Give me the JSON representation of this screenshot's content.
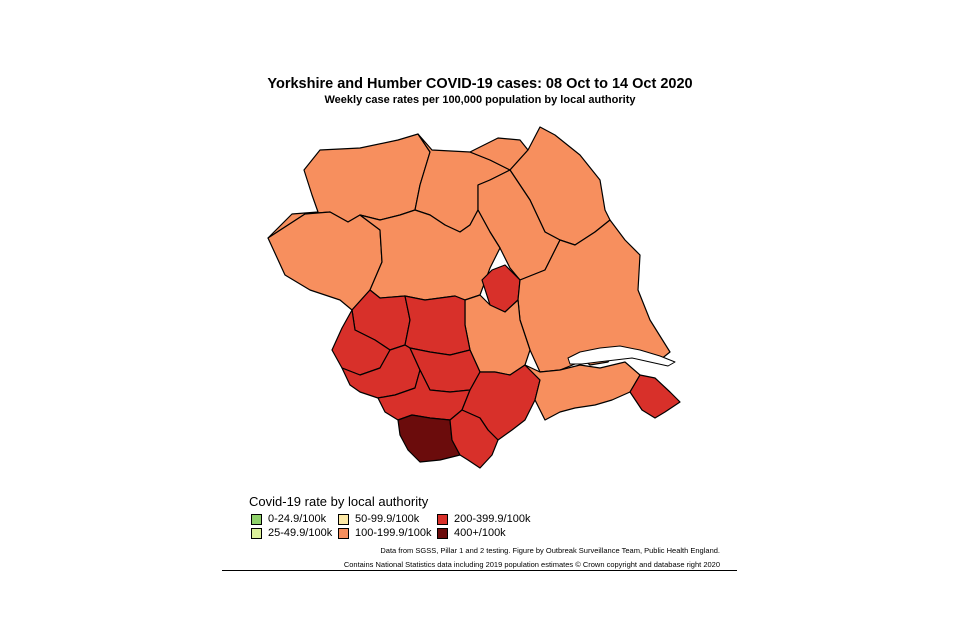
{
  "title": "Yorkshire and Humber COVID-19 cases: 08 Oct to 14 Oct 2020",
  "subtitle": "Weekly case rates per 100,000 population by local authority",
  "colors": {
    "band_100_199": "#f78f5e",
    "band_200_399": "#d8302a",
    "band_400_plus": "#6b0c0c",
    "estuary": "#ffffff",
    "border": "#000000"
  },
  "map": {
    "regions": [
      {
        "id": "richmondshire",
        "band": "100-199.9/100k"
      },
      {
        "id": "hambleton",
        "band": "100-199.9/100k"
      },
      {
        "id": "redcar-and-cleveland-adjacent",
        "band": "100-199.9/100k"
      },
      {
        "id": "scarborough",
        "band": "100-199.9/100k"
      },
      {
        "id": "ryedale",
        "band": "100-199.9/100k"
      },
      {
        "id": "craven",
        "band": "100-199.9/100k"
      },
      {
        "id": "harrogate",
        "band": "100-199.9/100k"
      },
      {
        "id": "york",
        "band": "200-399.9/100k"
      },
      {
        "id": "east-riding",
        "band": "100-199.9/100k"
      },
      {
        "id": "selby",
        "band": "100-199.9/100k"
      },
      {
        "id": "bradford",
        "band": "200-399.9/100k"
      },
      {
        "id": "leeds",
        "band": "200-399.9/100k"
      },
      {
        "id": "calderdale",
        "band": "200-399.9/100k"
      },
      {
        "id": "kirklees",
        "band": "200-399.9/100k"
      },
      {
        "id": "wakefield",
        "band": "200-399.9/100k"
      },
      {
        "id": "barnsley",
        "band": "200-399.9/100k"
      },
      {
        "id": "doncaster",
        "band": "200-399.9/100k"
      },
      {
        "id": "sheffield",
        "band": "400+/100k"
      },
      {
        "id": "rotherham",
        "band": "200-399.9/100k"
      },
      {
        "id": "kingston-upon-hull",
        "band": "100-199.9/100k"
      },
      {
        "id": "north-lincolnshire",
        "band": "100-199.9/100k"
      },
      {
        "id": "north-east-lincolnshire",
        "band": "200-399.9/100k"
      }
    ]
  },
  "legend": {
    "title": "Covid-19 rate by local authority",
    "items": [
      {
        "label": "0-24.9/100k",
        "color": "#8fd16a"
      },
      {
        "label": "25-49.9/100k",
        "color": "#dcf09a"
      },
      {
        "label": "50-99.9/100k",
        "color": "#fde9a6"
      },
      {
        "label": "100-199.9/100k",
        "color": "#f78f5e"
      },
      {
        "label": "200-399.9/100k",
        "color": "#d8302a"
      },
      {
        "label": "400+/100k",
        "color": "#6b0c0c"
      }
    ]
  },
  "source_line_1": "Data from SGSS, Pillar 1 and 2 testing. Figure by Outbreak Surveillance Team, Public Health England.",
  "source_line_2": "Contains National Statistics data including 2019 population estimates © Crown copyright and database right 2020"
}
